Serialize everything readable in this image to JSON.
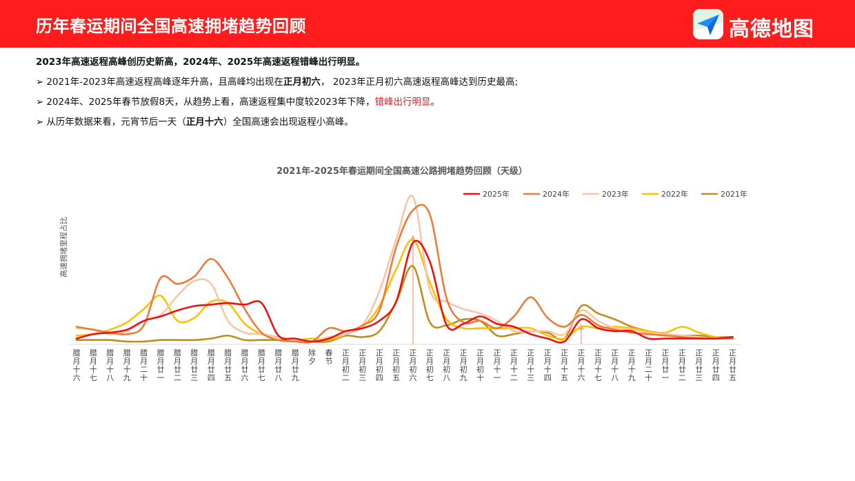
{
  "header": {
    "title": "历年春运期间全国高速拥堵趋势回顾",
    "brand": "高德地图",
    "brand_color": "#fe1c1c"
  },
  "summary": {
    "headline": "2023年高速返程高峰创历史新高，2024年、2025年高速返程错峰出行明显。",
    "bullet_marker": "➢",
    "bullets": [
      {
        "t1": "2021年-2023年高速返程高峰逐年升高，且高峰均出现在",
        "b1": "正月初六",
        "t2": "，  2023年正月初六高速返程高峰达到历史最高;"
      },
      {
        "t1": "2024年、2025年春节放假8天，从趋势上看，高速返程集中度较2023年下降，",
        "r1": "错峰出行明显",
        "t2": "。"
      },
      {
        "t1": "从历年数据来看，元宵节后一天（",
        "b1": "正月十六",
        "t2": "）全国高速会出现返程小高峰。"
      }
    ]
  },
  "chart_data": {
    "type": "line",
    "title": "2021年-2025年春运期间全国高速公路拥堵趋势回顾（天级）",
    "ylabel": "高速拥堵里程占比",
    "xlabel": "",
    "y_ticks_shown": false,
    "grid": false,
    "legend_position": "top-right",
    "ylim": [
      0,
      100
    ],
    "categories": [
      "腊月十六",
      "腊月十七",
      "腊月十八",
      "腊月十九",
      "腊月二十",
      "腊月廿一",
      "腊月廿二",
      "腊月廿三",
      "腊月廿四",
      "腊月廿五",
      "腊月廿六",
      "腊月廿七",
      "腊月廿八",
      "腊月廿九",
      "除夕",
      "春节",
      "正月初二",
      "正月初三",
      "正月初四",
      "正月初五",
      "正月初六",
      "正月初七",
      "正月初八",
      "正月初九",
      "正月初十",
      "正月十一",
      "正月十二",
      "正月十三",
      "正月十四",
      "正月十五",
      "正月十六",
      "正月十七",
      "正月十八",
      "正月十九",
      "正月二十",
      "正月廿一",
      "正月廿二",
      "正月廿三",
      "正月廿四",
      "正月廿五"
    ],
    "series": [
      {
        "name": "2025年",
        "color": "#ee1010",
        "values": [
          3,
          6,
          7,
          9,
          15,
          18,
          22,
          25,
          26,
          27,
          26,
          27,
          5,
          3,
          1,
          3,
          8,
          10,
          15,
          28,
          68,
          55,
          12,
          13,
          18,
          13,
          11,
          6,
          3,
          1,
          16,
          10,
          8,
          8,
          3,
          3,
          3,
          3,
          3,
          4
        ]
      },
      {
        "name": "2024年",
        "color": "#ec7a38",
        "values": [
          11,
          9,
          7,
          6,
          12,
          44,
          40,
          45,
          57,
          44,
          23,
          7,
          2,
          1,
          1,
          10,
          8,
          12,
          22,
          65,
          90,
          87,
          30,
          14,
          15,
          10,
          18,
          31,
          17,
          11,
          19,
          12,
          9,
          7,
          6,
          5,
          4,
          3,
          3,
          3
        ]
      },
      {
        "name": "2023年",
        "color": "#f8c5a8",
        "values": [
          10,
          9,
          6,
          8,
          15,
          19,
          32,
          42,
          40,
          15,
          7,
          6,
          4,
          2,
          1,
          4,
          6,
          12,
          35,
          70,
          99,
          36,
          28,
          23,
          20,
          15,
          8,
          8,
          8,
          6,
          22,
          15,
          10,
          9,
          7,
          6,
          5,
          4,
          3,
          3
        ]
      },
      {
        "name": "2022年",
        "color": "#ffc000",
        "values": [
          5,
          6,
          9,
          14,
          23,
          32,
          15,
          17,
          28,
          27,
          13,
          6,
          4,
          2,
          3,
          2,
          6,
          11,
          25,
          50,
          70,
          41,
          16,
          10,
          10,
          10,
          10,
          10,
          5,
          3,
          11,
          10,
          11,
          10,
          8,
          7,
          11,
          7,
          4,
          3
        ]
      },
      {
        "name": "2021年",
        "color": "#bb8f1c",
        "values": [
          2,
          2,
          2,
          1,
          1,
          2,
          2,
          2,
          3,
          5,
          2,
          2,
          2,
          2,
          1,
          1,
          5,
          4,
          8,
          28,
          52,
          14,
          12,
          16,
          15,
          5,
          6,
          8,
          7,
          3,
          25,
          20,
          16,
          11,
          8,
          6,
          5,
          5,
          4,
          4
        ]
      }
    ],
    "markers": [
      {
        "category": "正月初六",
        "style": "arrow",
        "color": "#f0a07a"
      },
      {
        "category": "正月十六",
        "style": "arrow",
        "color": "#f0a07a"
      }
    ]
  }
}
